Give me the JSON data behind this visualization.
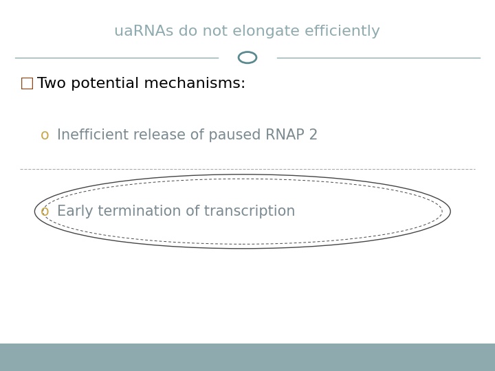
{
  "title": "uaRNAs do not elongate efficiently",
  "title_color": "#8faaaf",
  "title_fontsize": 16,
  "bg_color": "#ffffff",
  "footer_color": "#8faaaf",
  "line_color": "#8faaaf",
  "bullet_color": "#c8a84b",
  "header_bullet": "□",
  "header_text": "Two potential mechanisms:",
  "header_color": "#000000",
  "header_fontsize": 16,
  "item1_text": "Inefficient release of paused RNAP 2",
  "item2_text": "Early termination of transcription",
  "item_fontsize": 15,
  "item_color": "#7a8a90",
  "circle_color": "#5a8a90",
  "ellipse_color": "#444444",
  "line_separator_color": "#aaaaaa"
}
